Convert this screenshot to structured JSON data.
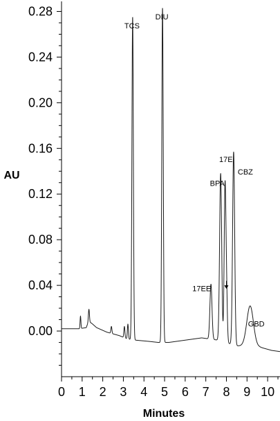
{
  "chart_data": {
    "type": "line",
    "title": "",
    "xlabel": "Minutes",
    "ylabel": "AU",
    "xlim": [
      0,
      10.6
    ],
    "ylim": [
      -0.04,
      0.29
    ],
    "x_ticks": [
      "0",
      "1",
      "2",
      "3",
      "4",
      "5",
      "6",
      "7",
      "8",
      "9",
      "10"
    ],
    "y_ticks": [
      "0.00",
      "0.04",
      "0.08",
      "0.12",
      "0.16",
      "0.20",
      "0.24",
      "0.28"
    ],
    "grid": false,
    "baseline": [
      {
        "x": 0.0,
        "y": 0.002
      },
      {
        "x": 0.85,
        "y": 0.002
      },
      {
        "x": 1.2,
        "y": 0.003
      },
      {
        "x": 1.3,
        "y": 0.008
      },
      {
        "x": 1.45,
        "y": 0.007
      },
      {
        "x": 1.7,
        "y": 0.003
      },
      {
        "x": 2.2,
        "y": -0.001
      },
      {
        "x": 2.8,
        "y": -0.004
      },
      {
        "x": 3.2,
        "y": -0.007
      },
      {
        "x": 3.6,
        "y": -0.008
      },
      {
        "x": 4.2,
        "y": -0.009
      },
      {
        "x": 4.7,
        "y": -0.01
      },
      {
        "x": 5.2,
        "y": -0.01
      },
      {
        "x": 6.0,
        "y": -0.008
      },
      {
        "x": 6.8,
        "y": -0.006
      },
      {
        "x": 7.6,
        "y": -0.008
      },
      {
        "x": 8.5,
        "y": -0.013
      },
      {
        "x": 8.8,
        "y": -0.013
      },
      {
        "x": 9.6,
        "y": -0.014
      },
      {
        "x": 10.2,
        "y": -0.017
      },
      {
        "x": 10.6,
        "y": -0.018
      }
    ],
    "peaks": [
      {
        "label": "",
        "x": 0.92,
        "y": 0.013,
        "width": 0.02
      },
      {
        "label": "",
        "x": 1.33,
        "y": 0.019,
        "width": 0.025
      },
      {
        "label": "",
        "x": 2.42,
        "y": 0.004,
        "width": 0.025
      },
      {
        "label": "",
        "x": 3.05,
        "y": 0.004,
        "width": 0.025
      },
      {
        "label": "",
        "x": 3.22,
        "y": 0.006,
        "width": 0.025
      },
      {
        "label": "TCS",
        "x": 3.45,
        "y": 0.275,
        "width": 0.035
      },
      {
        "label": "DIU",
        "x": 4.9,
        "y": 0.283,
        "width": 0.035
      },
      {
        "label": "17EE",
        "x": 7.25,
        "y": 0.041,
        "width": 0.05
      },
      {
        "label": "BPA",
        "x": 7.72,
        "y": 0.138,
        "width": 0.05
      },
      {
        "label": "",
        "x": 8.0,
        "y": 0.038,
        "width": 0.04
      },
      {
        "label": "17E",
        "x": 7.93,
        "y": 0.12,
        "width": 0.04
      },
      {
        "label": "CBZ",
        "x": 8.35,
        "y": 0.157,
        "width": 0.05
      },
      {
        "label": "GBD",
        "x": 9.15,
        "y": 0.022,
        "width": 0.16
      }
    ],
    "annotations": [
      {
        "text": "TCS",
        "x": 3.05,
        "y": 0.265
      },
      {
        "text": "DIU",
        "x": 4.55,
        "y": 0.273
      },
      {
        "text": "17EE",
        "x": 6.35,
        "y": 0.035
      },
      {
        "text": "BPA",
        "x": 7.2,
        "y": 0.127
      },
      {
        "text": "17E",
        "x": 7.65,
        "y": 0.148
      },
      {
        "text": "CBZ",
        "x": 8.55,
        "y": 0.137
      },
      {
        "text": "GBD",
        "x": 9.05,
        "y": 0.004
      }
    ],
    "arrow": {
      "from_x": 8.0,
      "from_y": 0.044,
      "to_x": 8.0,
      "to_y": 0.037
    }
  }
}
